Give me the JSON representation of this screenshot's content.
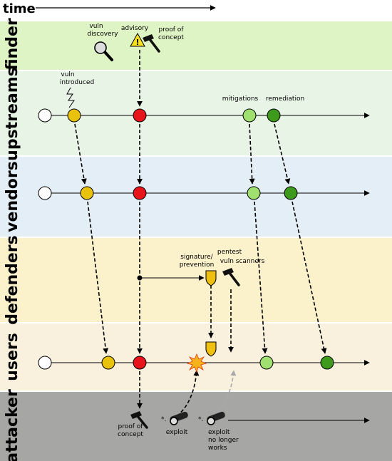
{
  "header": {
    "time_label": "time"
  },
  "lanes": [
    {
      "label": "finder",
      "color": "#def4c4"
    },
    {
      "label": "upstreams",
      "color": "#e8f5e6"
    },
    {
      "label": "vendors",
      "color": "#e4eef6"
    },
    {
      "label": "defenders",
      "color": "#fbf2cc"
    },
    {
      "label": "users",
      "color": "#faf0de"
    },
    {
      "label": "attacker",
      "color": "#a6a6a4"
    }
  ],
  "annotations": {
    "vuln_discovery": [
      "vuln",
      "discovery"
    ],
    "advisory": "advisory",
    "finder_poc": [
      "proof of",
      "concept"
    ],
    "vuln_introduced": [
      "vuln",
      "introduced"
    ],
    "mitigations": "mitigations",
    "remediation": "remediation",
    "signature": [
      "signature/",
      "prevention"
    ],
    "pentest": [
      "pentest",
      "vuln scanners"
    ],
    "attacker_poc": [
      "proof of",
      "concept"
    ],
    "exploit": "exploit",
    "exploit_no_longer": [
      "exploit",
      "no longer",
      "works"
    ]
  },
  "colors": {
    "yellow": "#e8c20c",
    "red": "#e8141c",
    "light_green": "#a0e070",
    "dark_green": "#3e9a1c",
    "white": "#ffffff",
    "shield": "#f0c010",
    "gray_arrow": "#aaaaaa"
  }
}
